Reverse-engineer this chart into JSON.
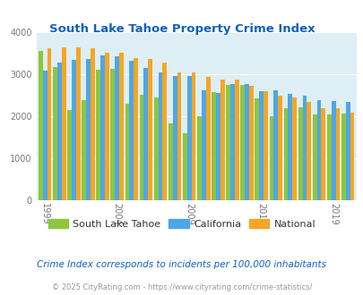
{
  "title": "South Lake Tahoe Property Crime Index",
  "title_color": "#1060c0",
  "years": [
    1999,
    2000,
    2001,
    2002,
    2003,
    2004,
    2005,
    2006,
    2007,
    2008,
    2009,
    2010,
    2011,
    2012,
    2013,
    2014,
    2015,
    2016,
    2017,
    2018,
    2019,
    2020
  ],
  "south_lake_tahoe": [
    3550,
    3180,
    2150,
    2380,
    3120,
    3140,
    2300,
    2520,
    2460,
    1840,
    1600,
    2000,
    2590,
    2760,
    2750,
    2440,
    2000,
    2200,
    2210,
    2050,
    2050,
    2070
  ],
  "california": [
    3100,
    3290,
    3340,
    3370,
    3450,
    3440,
    3330,
    3160,
    3050,
    2960,
    2960,
    2620,
    2570,
    2770,
    2770,
    2600,
    2620,
    2540,
    2490,
    2380,
    2370,
    2350
  ],
  "national": [
    3620,
    3650,
    3640,
    3620,
    3510,
    3510,
    3390,
    3360,
    3290,
    3050,
    3060,
    2950,
    2880,
    2870,
    2720,
    2600,
    2490,
    2450,
    2350,
    2200,
    2190,
    2100
  ],
  "color_slt": "#8dc63f",
  "color_ca": "#4da6e8",
  "color_nat": "#f5a623",
  "bg_color": "#deeef5",
  "note_text": "Crime Index corresponds to incidents per 100,000 inhabitants",
  "footer_text": "© 2025 CityRating.com - https://www.cityrating.com/crime-statistics/",
  "note_color": "#1060c0",
  "footer_color": "#999999",
  "ylim": [
    0,
    4000
  ],
  "yticks": [
    0,
    1000,
    2000,
    3000,
    4000
  ],
  "tick_years": [
    1999,
    2004,
    2009,
    2014,
    2019
  ]
}
